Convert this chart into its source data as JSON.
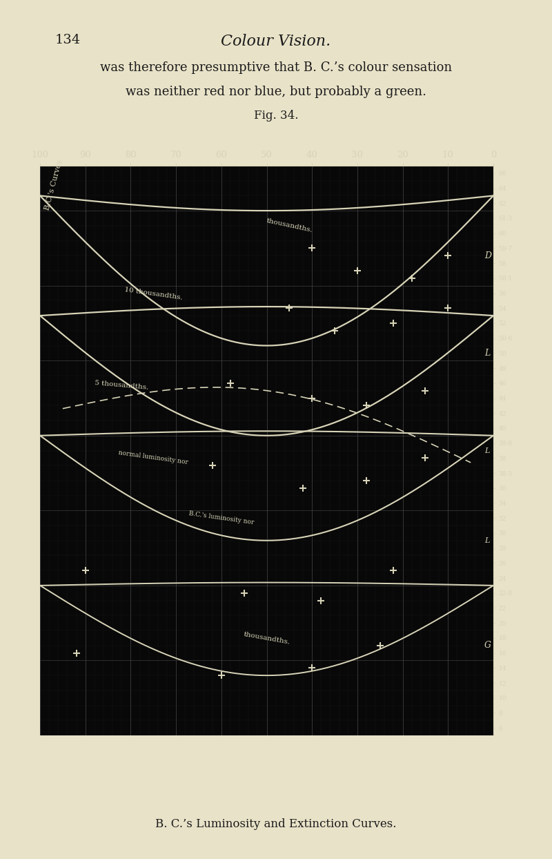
{
  "page_number": "134",
  "page_title": "Colour Vision.",
  "fig_label": "Fig. 34.",
  "caption": "B. C.’s Luminosity and Extinction Curves.",
  "text_line1": "was therefore presumptive that B. C.’s colour sensation",
  "text_line2": "was neither red nor blue, but probably a green.",
  "bg_color": "#e8e2c8",
  "chart_bg": "#080808",
  "curve_color": "#d8d4b8",
  "grid_major_color": "#444444",
  "grid_minor_color": "#222222",
  "text_color": "#d8d4b8",
  "top_labels": [
    "100",
    "90",
    "80",
    "70",
    "60",
    "50",
    "40",
    "30",
    "20",
    "10",
    "0"
  ],
  "right_labels_top": [
    "66",
    "64",
    "62",
    "61·3",
    "60",
    "59·7",
    "58",
    "58·1"
  ],
  "right_labels_mid": [
    "56",
    "54",
    "52",
    "50·6",
    "50",
    "48",
    "46",
    "44",
    "42",
    "40",
    "39·8",
    "38",
    "38·3"
  ],
  "right_labels_bot": [
    "36",
    "34",
    "32",
    "30",
    "28",
    "26",
    "24",
    "22·8",
    "22",
    "20",
    "18",
    "16",
    "14",
    "12",
    "10",
    "8",
    "6"
  ],
  "all_right_labels": [
    "66",
    "64",
    "62",
    "61·3",
    "60",
    "59·7",
    "58",
    "58·1",
    "56",
    "54",
    "52",
    "50·6",
    "50",
    "48",
    "46",
    "44",
    "42",
    "40",
    "39·8",
    "38",
    "38·3",
    "36",
    "34",
    "32",
    "30",
    "28",
    "26",
    "24",
    "22·8",
    "22",
    "20",
    "18",
    "16",
    "14",
    "12",
    "10",
    "8",
    "6"
  ]
}
